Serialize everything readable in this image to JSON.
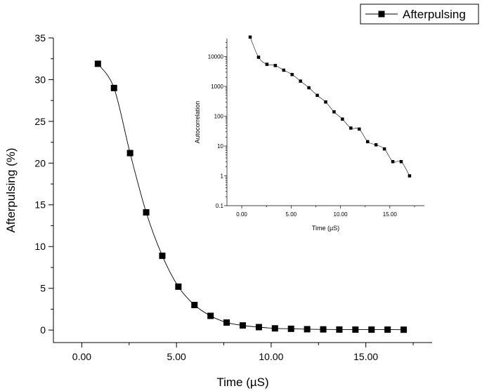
{
  "chart_data": [
    {
      "id": "main",
      "type": "line",
      "title": "",
      "xlabel": "Time (µS)",
      "ylabel": "Afterpulsing (%)",
      "xlim": [
        -1.5,
        18.5
      ],
      "ylim": [
        -1.5,
        35
      ],
      "xticks": [
        0,
        5,
        10,
        15
      ],
      "xtick_labels": [
        "0.00",
        "5.00",
        "10.00",
        "15.00"
      ],
      "yticks": [
        0,
        5,
        10,
        15,
        20,
        25,
        30,
        35
      ],
      "ytick_labels": [
        "0",
        "5",
        "10",
        "15",
        "20",
        "25",
        "30",
        "35"
      ],
      "grid": false,
      "legend": {
        "position": "top-right",
        "entries": [
          "Afterpulsing"
        ]
      },
      "marker": "square",
      "line_color": "#000000",
      "series": [
        {
          "name": "Afterpulsing",
          "x": [
            0.85,
            1.7,
            2.55,
            3.4,
            4.25,
            5.1,
            5.95,
            6.8,
            7.65,
            8.5,
            9.35,
            10.2,
            11.05,
            11.9,
            12.75,
            13.6,
            14.45,
            15.3,
            16.15,
            17.0
          ],
          "y": [
            31.9,
            29.0,
            21.2,
            14.1,
            8.9,
            5.2,
            3.0,
            1.7,
            0.9,
            0.55,
            0.35,
            0.2,
            0.15,
            0.1,
            0.08,
            0.06,
            0.05,
            0.05,
            0.05,
            0.04
          ]
        }
      ]
    },
    {
      "id": "inset",
      "type": "line",
      "title": "",
      "xlabel": "Time (µS)",
      "ylabel": "Autocorrelation",
      "yscale": "log",
      "xlim": [
        -1.5,
        18.5
      ],
      "ylim": [
        0.1,
        40000
      ],
      "xticks": [
        0,
        5,
        10,
        15
      ],
      "xtick_labels": [
        "0.00",
        "5.00",
        "10.00",
        "15.00"
      ],
      "yticks": [
        0.1,
        1,
        10,
        100,
        1000,
        10000
      ],
      "ytick_labels": [
        "0.1",
        "1",
        "10",
        "100",
        "1000",
        "10000"
      ],
      "grid": false,
      "marker": "square",
      "line_color": "#000000",
      "series": [
        {
          "x": [
            0.85,
            1.7,
            2.55,
            3.4,
            4.25,
            5.1,
            5.95,
            6.8,
            7.65,
            8.5,
            9.35,
            10.2,
            11.05,
            11.9,
            12.75,
            13.6,
            14.45,
            15.3,
            16.15,
            17.0
          ],
          "y": [
            45000,
            9500,
            5500,
            5000,
            3500,
            2500,
            1500,
            900,
            500,
            300,
            140,
            80,
            40,
            37,
            14,
            11,
            8,
            3,
            3,
            1
          ]
        }
      ]
    }
  ]
}
